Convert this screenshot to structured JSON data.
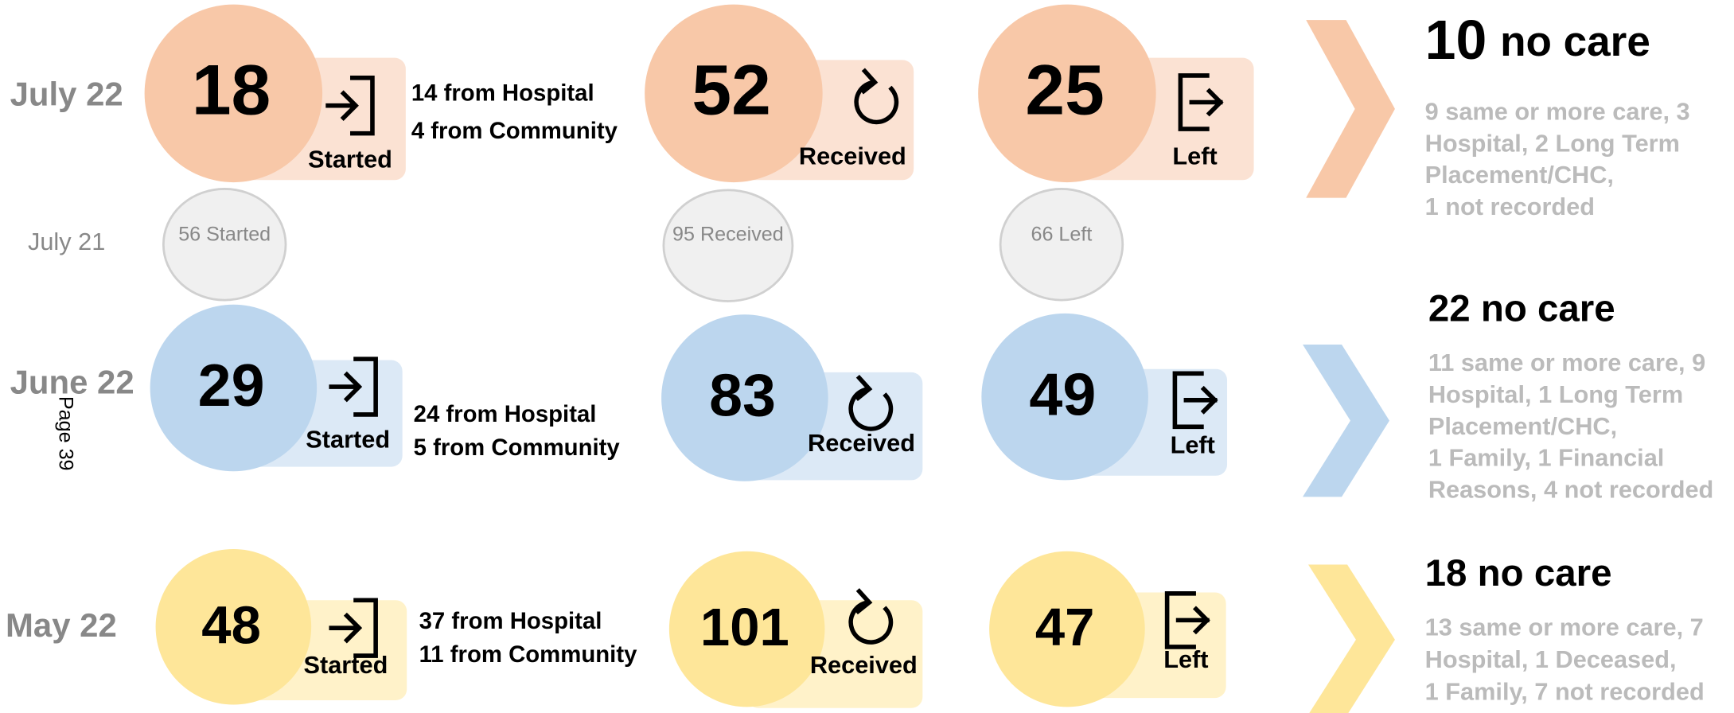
{
  "page_label": "Page 39",
  "comparison": {
    "month": "July 21",
    "started": "56 Started",
    "received": "95 Received",
    "left": "66 Left"
  },
  "rows": [
    {
      "month": "July 22",
      "started": {
        "value": 18,
        "label": "Started"
      },
      "breakdown": [
        "14 from Hospital",
        "4 from Community"
      ],
      "received": {
        "value": 52,
        "label": "Received"
      },
      "left": {
        "value": 25,
        "label": "Left"
      },
      "no_care": {
        "count": 10,
        "label": "no care"
      },
      "details": [
        "9 same or more care, 3",
        "Hospital, 2 Long Term",
        "Placement/CHC,",
        "1 not recorded"
      ]
    },
    {
      "month": "June 22",
      "started": {
        "value": 29,
        "label": "Started"
      },
      "breakdown": [
        "24 from Hospital",
        "5 from Community"
      ],
      "received": {
        "value": 83,
        "label": "Received"
      },
      "left": {
        "value": 49,
        "label": "Left"
      },
      "no_care": {
        "text": "22 no care"
      },
      "details": [
        "11 same or more care, 9",
        "Hospital, 1 Long Term",
        "Placement/CHC,",
        "1 Family, 1 Financial",
        "Reasons, 4 not recorded"
      ]
    },
    {
      "month": "May 22",
      "started": {
        "value": 48,
        "label": "Started"
      },
      "breakdown": [
        "37 from Hospital",
        "11 from Community"
      ],
      "received": {
        "value": 101,
        "label": "Received"
      },
      "left": {
        "value": 47,
        "label": "Left"
      },
      "no_care": {
        "text": "18 no care"
      },
      "details": [
        "13 same or more care, 7",
        "Hospital, 1 Deceased,",
        "1 Family, 7 not recorded"
      ]
    }
  ]
}
